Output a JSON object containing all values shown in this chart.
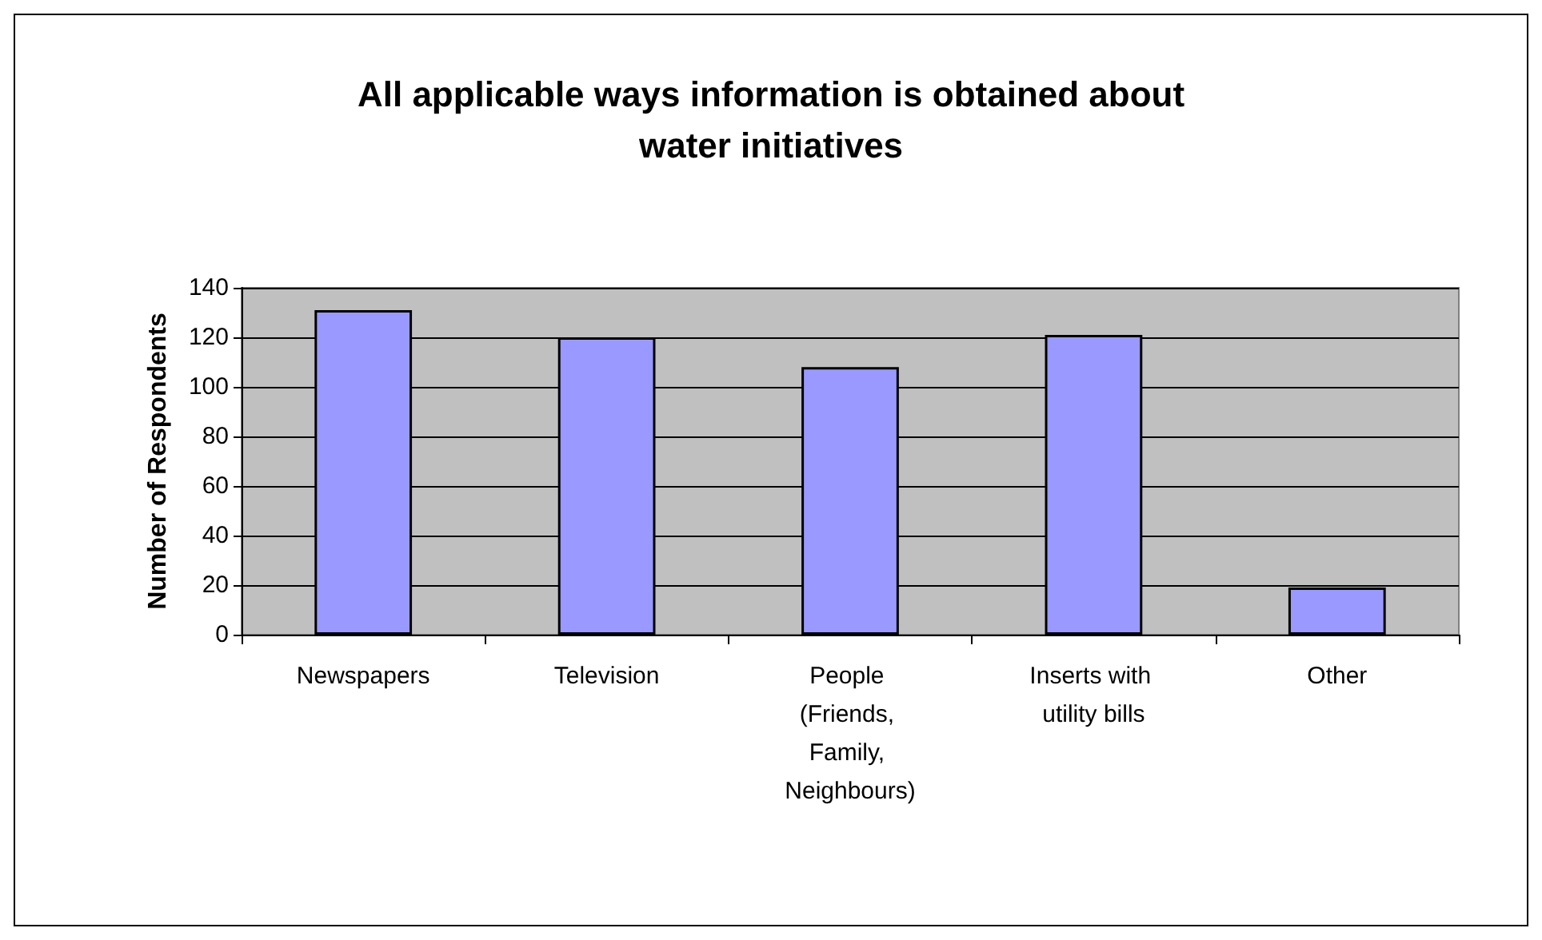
{
  "chart_data": {
    "type": "bar",
    "title": "All applicable ways information is obtained about\nwater initiatives",
    "ylabel": "Number of Respondents",
    "categories": [
      "Newspapers",
      "Television",
      "People (Friends, Family, Neighbours)",
      "Inserts with utility bills",
      "Other"
    ],
    "values": [
      131,
      120,
      108,
      121,
      19
    ],
    "color": "#9999ff",
    "ylim": [
      0,
      140
    ],
    "yticks": [
      0,
      20,
      40,
      60,
      80,
      100,
      120,
      140
    ],
    "grid": "y"
  }
}
